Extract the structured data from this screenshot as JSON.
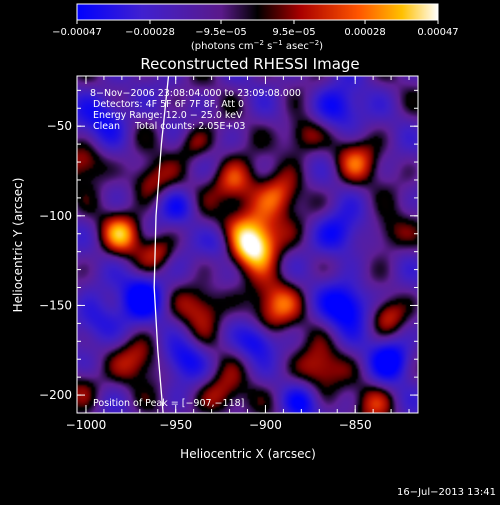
{
  "chart_data": {
    "type": "heatmap",
    "title": "Reconstructed RHESSI Image",
    "xlabel": "Heliocentric X (arcsec)",
    "ylabel": "Heliocentric Y (arcsec)",
    "xlim": [
      -1005,
      -815
    ],
    "ylim": [
      -210,
      -22
    ],
    "x_ticks": [
      {
        "value": -1000,
        "label": "−1000"
      },
      {
        "value": -950,
        "label": "−950"
      },
      {
        "value": -900,
        "label": "−900"
      },
      {
        "value": -850,
        "label": "−850"
      }
    ],
    "y_ticks": [
      {
        "value": -50,
        "label": "−50"
      },
      {
        "value": -100,
        "label": "−100"
      },
      {
        "value": -150,
        "label": "−150"
      },
      {
        "value": -200,
        "label": "−200"
      }
    ],
    "colorbar": {
      "min": -0.00047,
      "max": 0.00047,
      "ticks": [
        {
          "value": -0.00047,
          "label": "−0.00047"
        },
        {
          "value": -0.00028,
          "label": "−0.00028"
        },
        {
          "value": -9.5e-05,
          "label": "−9.5e−05"
        },
        {
          "value": 9.5e-05,
          "label": "9.5e−05"
        },
        {
          "value": 0.00028,
          "label": "0.00028"
        },
        {
          "value": 0.00047,
          "label": "0.00047"
        }
      ],
      "unit_main": "(photons cm",
      "unit_exp1": "−2",
      "unit_mid": " s",
      "unit_exp2": "−1",
      "unit_end": " asec",
      "unit_exp3": "−2",
      "unit_close": ")"
    },
    "peak": {
      "x": -907,
      "y": -118
    },
    "blobs": [
      {
        "x": -905,
        "y": -110,
        "v": 1.0,
        "s": 12
      },
      {
        "x": -907,
        "y": -118,
        "v": 0.6,
        "s": 8
      },
      {
        "x": -918,
        "y": -82,
        "v": 0.75,
        "s": 9
      },
      {
        "x": -892,
        "y": -88,
        "v": 0.55,
        "s": 8
      },
      {
        "x": -895,
        "y": -150,
        "v": 0.7,
        "s": 10
      },
      {
        "x": -935,
        "y": -150,
        "v": 0.6,
        "s": 9
      },
      {
        "x": -968,
        "y": -145,
        "v": -0.9,
        "s": 9
      },
      {
        "x": -970,
        "y": -180,
        "v": 0.55,
        "s": 9
      },
      {
        "x": -980,
        "y": -110,
        "v": 0.8,
        "s": 8
      },
      {
        "x": -960,
        "y": -120,
        "v": 0.5,
        "s": 7
      },
      {
        "x": -965,
        "y": -80,
        "v": 0.55,
        "s": 8
      },
      {
        "x": -990,
        "y": -45,
        "v": -0.6,
        "s": 10
      },
      {
        "x": -850,
        "y": -70,
        "v": 0.6,
        "s": 9
      },
      {
        "x": -832,
        "y": -110,
        "v": 0.5,
        "s": 8
      },
      {
        "x": -860,
        "y": -110,
        "v": -0.7,
        "s": 9
      },
      {
        "x": -855,
        "y": -150,
        "v": -0.9,
        "s": 9
      },
      {
        "x": -832,
        "y": -155,
        "v": 0.5,
        "s": 7
      },
      {
        "x": -830,
        "y": -180,
        "v": -0.8,
        "s": 8
      },
      {
        "x": -870,
        "y": -185,
        "v": 0.6,
        "s": 9
      },
      {
        "x": -860,
        "y": -40,
        "v": -0.7,
        "s": 9
      },
      {
        "x": -925,
        "y": -200,
        "v": 0.55,
        "s": 9
      },
      {
        "x": -940,
        "y": -60,
        "v": 0.45,
        "s": 7
      },
      {
        "x": -1000,
        "y": -70,
        "v": 0.6,
        "s": 8
      },
      {
        "x": -995,
        "y": -160,
        "v": -0.55,
        "s": 9
      },
      {
        "x": -880,
        "y": -55,
        "v": 0.6,
        "s": 8
      },
      {
        "x": -945,
        "y": -180,
        "v": -0.6,
        "s": 8
      },
      {
        "x": -905,
        "y": -170,
        "v": -0.6,
        "s": 7
      },
      {
        "x": -925,
        "y": -115,
        "v": -0.5,
        "s": 7
      },
      {
        "x": -840,
        "y": -205,
        "v": 0.45,
        "s": 8
      },
      {
        "x": -880,
        "y": -205,
        "v": -0.55,
        "s": 7
      },
      {
        "x": -1002,
        "y": -195,
        "v": 0.45,
        "s": 8
      },
      {
        "x": -948,
        "y": -95,
        "v": -0.5,
        "s": 7
      }
    ],
    "limb_arc": [
      [
        -954,
        -22
      ],
      [
        -958,
        -60
      ],
      [
        -961,
        -100
      ],
      [
        -962,
        -140
      ],
      [
        -960,
        -175
      ],
      [
        -957,
        -210
      ]
    ],
    "annotations": {
      "time_range": "8−Nov−2006 23:08:04.000 to 23:09:08.000",
      "detectors": "Detectors: 4F 5F 6F 7F 8F, Att 0",
      "energy": "Energy Range: 12.0 − 25.0 keV",
      "clean": "Clean     Total counts: 2.05E+03",
      "peak_label": "Position of Peak = [−907,−118]"
    },
    "timestamp": "16−Jul−2013 13:41"
  }
}
